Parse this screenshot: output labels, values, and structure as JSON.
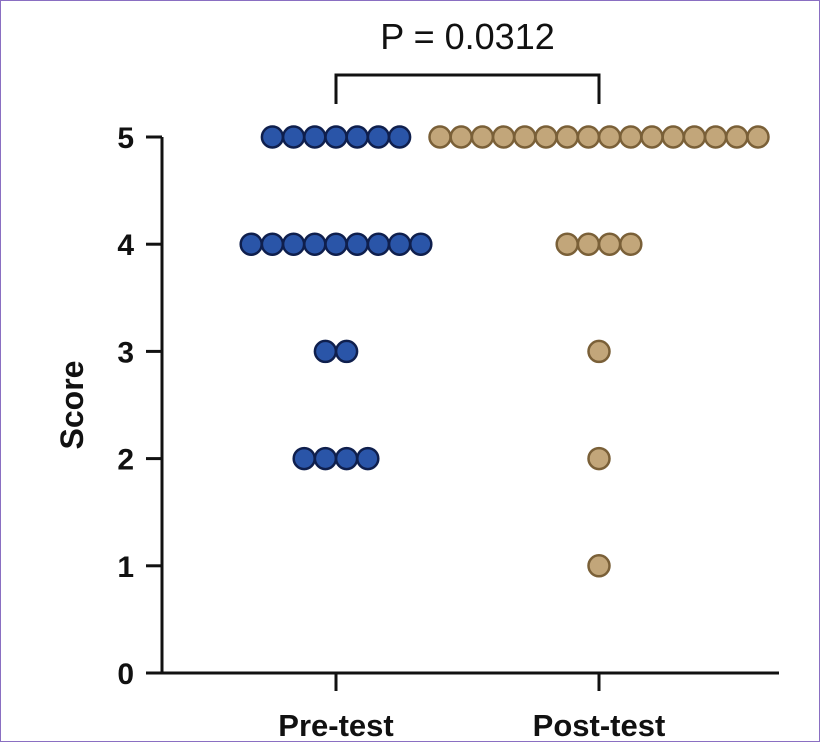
{
  "chart_data": {
    "type": "scatter",
    "subtype": "dot-plot",
    "title": "",
    "xlabel": "",
    "ylabel": "Score",
    "ylim": [
      0,
      5
    ],
    "yticks": [
      0,
      1,
      2,
      3,
      4,
      5
    ],
    "categories": [
      "Pre-test",
      "Post-test"
    ],
    "grid": false,
    "legend": "none",
    "annotation": {
      "text": "P = 0.0312",
      "between": [
        "Pre-test",
        "Post-test"
      ]
    },
    "series": [
      {
        "category": "Pre-test",
        "color": "#2a55a8",
        "edge": "#0f1f4d",
        "counts": {
          "5": 7,
          "4": 9,
          "3": 2,
          "2": 4
        }
      },
      {
        "category": "Post-test",
        "color": "#c2a67a",
        "edge": "#7a6038",
        "counts": {
          "5": 16,
          "4": 4,
          "3": 1,
          "2": 1,
          "1": 1
        }
      }
    ]
  }
}
